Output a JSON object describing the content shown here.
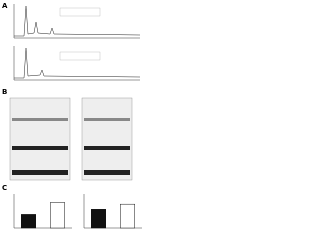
{
  "panels": [
    {
      "label": "A"
    },
    {
      "label": "B"
    },
    {
      "label": "C",
      "charts": [
        {
          "values": [
            0.4,
            0.75
          ],
          "colors": [
            "#111111",
            "#ffffff"
          ]
        },
        {
          "values": [
            0.55,
            0.7
          ],
          "colors": [
            "#111111",
            "#ffffff"
          ]
        }
      ]
    }
  ]
}
